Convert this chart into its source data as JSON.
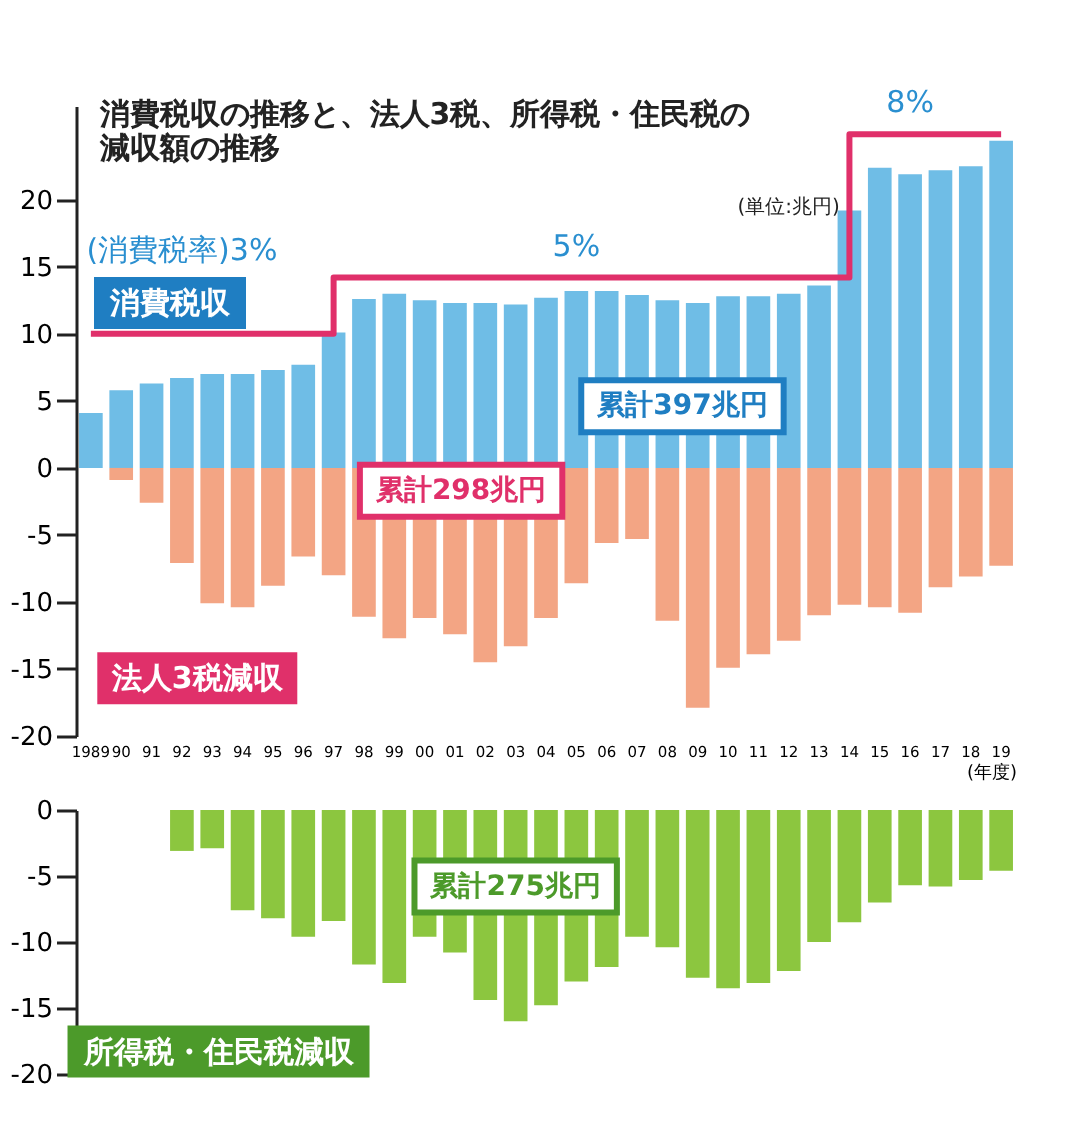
{
  "chart_data": [
    {
      "type": "bar",
      "stacked": true,
      "title": "消費税収の推移と、法人3税、所得税・住民税の減収額の推移",
      "xlabel": "(年度)",
      "categories": [
        "1989",
        "90",
        "91",
        "92",
        "93",
        "94",
        "95",
        "96",
        "97",
        "98",
        "99",
        "00",
        "01",
        "02",
        "03",
        "04",
        "05",
        "06",
        "07",
        "08",
        "09",
        "10",
        "11",
        "12",
        "13",
        "14",
        "15",
        "16",
        "17",
        "18",
        "19"
      ],
      "series": [
        {
          "name": "消費税収",
          "color": "#6fbde6",
          "values": [
            4.1,
            5.8,
            6.3,
            6.7,
            7.0,
            7.0,
            7.3,
            7.7,
            10.1,
            12.6,
            13.0,
            12.5,
            12.3,
            12.3,
            12.2,
            12.7,
            13.2,
            13.2,
            12.9,
            12.5,
            12.3,
            12.8,
            12.8,
            13.0,
            13.6,
            19.2,
            22.4,
            21.9,
            22.2,
            22.5,
            24.4
          ]
        },
        {
          "name": "法人3税減収",
          "color": "#f3a584",
          "values": [
            null,
            -0.9,
            -2.6,
            -7.1,
            -10.1,
            -10.4,
            -8.8,
            -6.6,
            -8.0,
            -11.1,
            -12.7,
            -11.2,
            -12.4,
            -14.5,
            -13.3,
            -11.2,
            -8.6,
            -5.6,
            -5.3,
            -11.4,
            -17.9,
            -14.9,
            -13.9,
            -12.9,
            -11.0,
            -10.2,
            -10.4,
            -10.8,
            -8.9,
            -8.1,
            -7.3
          ]
        },
        {
          "type": "step",
          "color": "#e0306a",
          "values": [
            10,
            10,
            10,
            10,
            10,
            10,
            10,
            10,
            14.2,
            14.2,
            14.2,
            14.2,
            14.2,
            14.2,
            14.2,
            14.2,
            14.2,
            14.2,
            14.2,
            14.2,
            14.2,
            14.2,
            14.2,
            14.2,
            14.2,
            24.9,
            24.9,
            24.9,
            24.9,
            24.9,
            24.9
          ]
        }
      ],
      "ylim": [
        -20,
        27
      ],
      "yticks": [
        -20,
        -15,
        -10,
        -5,
        0,
        5,
        10,
        15,
        20
      ],
      "annotations": [
        "(単位:兆円)",
        "累計397兆円",
        "累計298兆円",
        {
          "text": "(消費税率)3%",
          "x": "92",
          "y": 10
        },
        {
          "text": "5%",
          "x": "05",
          "y": 14.2
        },
        {
          "text": "8%",
          "x": "16",
          "y": 24.9
        }
      ]
    },
    {
      "type": "bar",
      "tick_labels": "y",
      "categories": [
        "1989",
        "90",
        "91",
        "92",
        "93",
        "94",
        "95",
        "96",
        "97",
        "98",
        "99",
        "00",
        "01",
        "02",
        "03",
        "04",
        "05",
        "06",
        "07",
        "08",
        "09",
        "10",
        "11",
        "12",
        "13",
        "14",
        "15",
        "16",
        "17",
        "18",
        "19"
      ],
      "series": [
        {
          "name": "所得税・住民税減収",
          "color": "#8cc63f",
          "values": [
            null,
            null,
            null,
            -3.1,
            -2.9,
            -7.6,
            -8.2,
            -9.6,
            -8.4,
            -11.7,
            -13.1,
            -9.6,
            -10.8,
            -14.4,
            -16.0,
            -14.8,
            -13.0,
            -11.9,
            -9.6,
            -10.4,
            -12.7,
            -13.5,
            -13.1,
            -12.2,
            -10.0,
            -8.5,
            -7.0,
            -5.7,
            -5.8,
            -5.3,
            -4.6
          ]
        }
      ],
      "ylim": [
        -20,
        0
      ],
      "yticks": [
        -20,
        -15,
        -10,
        -5,
        0
      ],
      "annotations": [
        "累計275兆円"
      ]
    }
  ]
}
